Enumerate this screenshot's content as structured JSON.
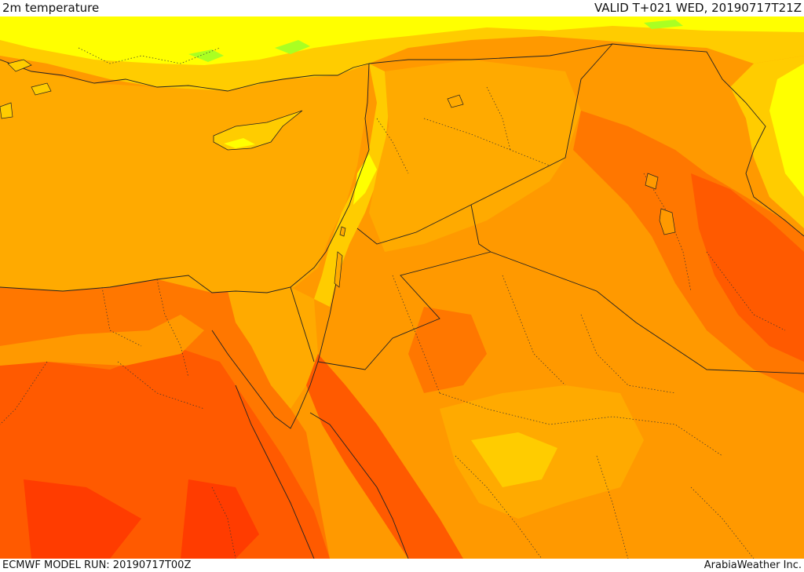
{
  "header": {
    "title": "2m temperature",
    "valid": "VALID T+021 WED, 20190717T21Z"
  },
  "footer": {
    "model_run": "ECMWF MODEL RUN: 20190717T00Z",
    "credit": "ArabiaWeather Inc."
  },
  "colors": {
    "ocean_fill": "#ffaa00",
    "band_yellow": "#ffff00",
    "band_yellow_orange": "#ffcc00",
    "band_orange": "#ff9900",
    "band_dark_orange": "#ff7700",
    "band_red_orange": "#ff5a00",
    "band_red": "#ff3c00",
    "band_light_green": "#aaff22",
    "border_color": "#222222"
  }
}
